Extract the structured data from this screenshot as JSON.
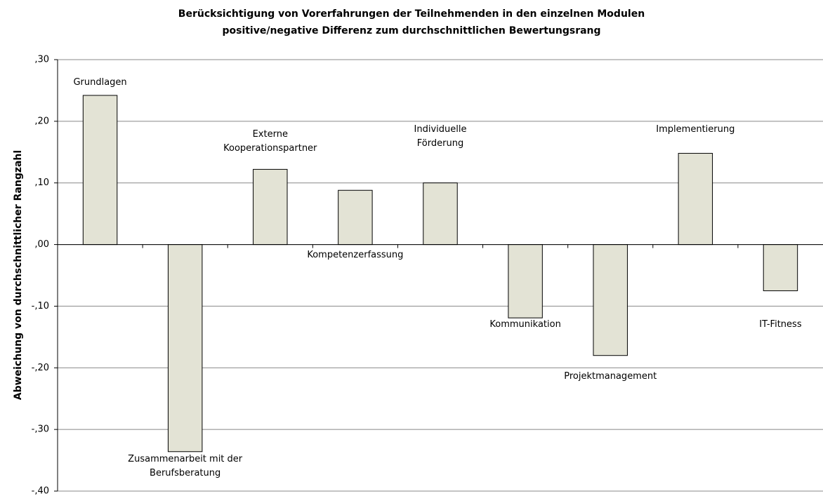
{
  "chart_data": {
    "type": "bar",
    "title": "Berücksichtigung von Vorerfahrungen der Teilnehmenden in den einzelnen Modulen",
    "subtitle": "positive/negative Differenz zum durchschnittlichen Bewertungsrang",
    "y_label": "Abweichung von durchschnittlicher Rangzahl",
    "categories": [
      "Grundlagen",
      "Zusammenarbeit mit der\nBerufsberatung",
      "Externe\nKooperationspartner",
      "Kompetenzerfassung",
      "Individuelle\nFörderung",
      "Kommunikation",
      "Projektmanagement",
      "Implementierung",
      "IT-Fitness"
    ],
    "values": [
      0.242,
      -0.336,
      0.122,
      0.088,
      0.1,
      -0.119,
      -0.18,
      0.148,
      -0.075
    ],
    "color": "#e3e3d5",
    "ylim": [
      -0.4,
      0.3
    ],
    "yticks": [
      {
        "value": -0.4,
        "label": "-,40"
      },
      {
        "value": -0.3,
        "label": "-,30"
      },
      {
        "value": -0.2,
        "label": "-,20"
      },
      {
        "value": -0.1,
        "label": "-,10"
      },
      {
        "value": 0,
        "label": ",00"
      },
      {
        "value": 0.1,
        "label": ",10"
      },
      {
        "value": 0.2,
        "label": ",20"
      },
      {
        "value": 0.3,
        "label": ",30"
      }
    ],
    "grid": true
  }
}
